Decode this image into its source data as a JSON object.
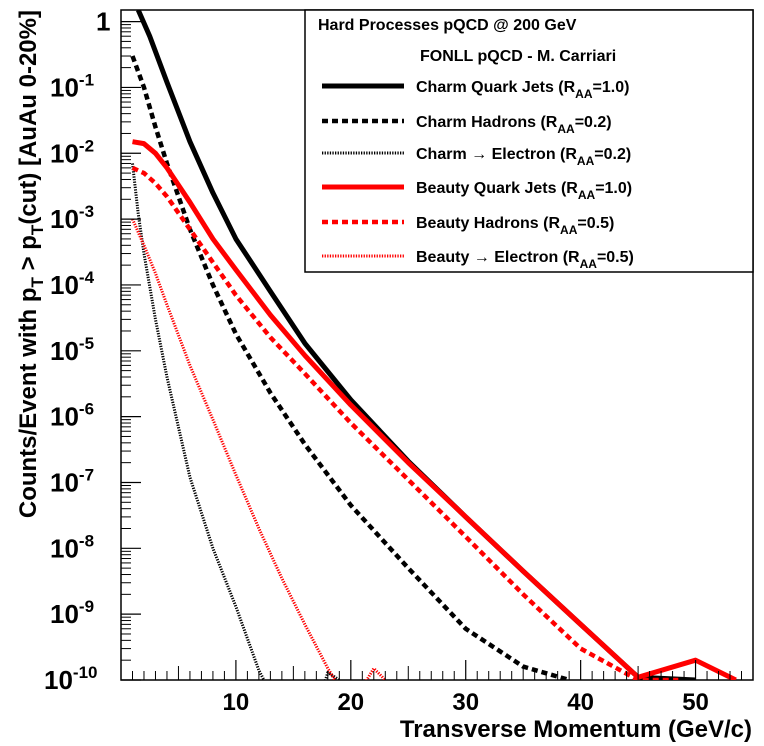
{
  "chart_data": {
    "type": "line",
    "xlabel": "Transverse Momentum (GeV/c)",
    "ylabel": "Counts/Event with p_T > p_T(cut) [AuAu 0-20%]",
    "ylabel_parts": {
      "pre": "Counts/Event with p",
      "sub1": "T",
      "mid": " > p",
      "sub2": "T",
      "post": "(cut) [AuAu 0-20%]"
    },
    "xlim": [
      0,
      55
    ],
    "ylim": [
      1e-10,
      1.5
    ],
    "yscale": "log",
    "x_ticks": [
      {
        "value": 10,
        "label": "10"
      },
      {
        "value": 20,
        "label": "20"
      },
      {
        "value": 30,
        "label": "30"
      },
      {
        "value": 40,
        "label": "40"
      },
      {
        "value": 50,
        "label": "50"
      }
    ],
    "y_ticks": [
      {
        "exp": 0,
        "base": "1",
        "sup": ""
      },
      {
        "exp": -1,
        "base": "10",
        "sup": "-1"
      },
      {
        "exp": -2,
        "base": "10",
        "sup": "-2"
      },
      {
        "exp": -3,
        "base": "10",
        "sup": "-3"
      },
      {
        "exp": -4,
        "base": "10",
        "sup": "-4"
      },
      {
        "exp": -5,
        "base": "10",
        "sup": "-5"
      },
      {
        "exp": -6,
        "base": "10",
        "sup": "-6"
      },
      {
        "exp": -7,
        "base": "10",
        "sup": "-7"
      },
      {
        "exp": -8,
        "base": "10",
        "sup": "-8"
      },
      {
        "exp": -9,
        "base": "10",
        "sup": "-9"
      },
      {
        "exp": -10,
        "base": "10",
        "sup": "-10"
      }
    ],
    "legend": {
      "position": "top-right",
      "header1": "Hard Processes pQCD @ 200 GeV",
      "header2": "FONLL pQCD - M. Carriari"
    },
    "series": [
      {
        "name": "Charm Quark Jets (R_AA=1.0)",
        "legend_main": "Charm Quark Jets (R",
        "legend_sub": "AA",
        "legend_tail": "=1.0)",
        "color": "#000000",
        "style": "solid",
        "x": [
          1.5,
          2.5,
          4,
          6,
          8,
          10,
          13,
          16,
          20,
          25,
          30,
          35,
          40,
          45,
          50
        ],
        "y": [
          1.5,
          0.6,
          0.12,
          0.015,
          0.0025,
          0.0005,
          8e-05,
          1.3e-05,
          1.8e-06,
          2.1e-07,
          3e-08,
          4.5e-09,
          7e-10,
          1.1e-10,
          1e-10
        ]
      },
      {
        "name": "Charm Hadrons (R_AA=0.2)",
        "legend_main": "Charm Hadrons (R",
        "legend_sub": "AA",
        "legend_tail": "=0.2)",
        "color": "#000000",
        "style": "dashed",
        "x": [
          1,
          2,
          3,
          4,
          6,
          8,
          10,
          13,
          16,
          20,
          25,
          30,
          35,
          39
        ],
        "y": [
          0.3,
          0.1,
          0.025,
          0.007,
          0.0007,
          0.0001,
          1.8e-05,
          2.3e-06,
          3.8e-07,
          4.5e-08,
          5e-09,
          6e-10,
          1.6e-10,
          1e-10
        ]
      },
      {
        "name": "Charm → Electron (R_AA=0.2)",
        "legend_main": "Charm → Electron (R",
        "legend_sub": "AA",
        "legend_tail": "=0.2)",
        "color": "#000000",
        "style": "dotted",
        "x": [
          1,
          1.5,
          2,
          3,
          4,
          6,
          8,
          10,
          12,
          14,
          16,
          18,
          19
        ],
        "y": [
          0.007,
          0.0012,
          0.0003,
          3e-05,
          4e-06,
          1.2e-07,
          1e-08,
          1.3e-09,
          1.4e-10,
          3e-11,
          1e-11,
          1.3e-10,
          1e-10
        ]
      },
      {
        "name": "Beauty Quark Jets (R_AA=1.0)",
        "legend_main": "Beauty Quark Jets (R",
        "legend_sub": "AA",
        "legend_tail": "=1.0)",
        "color": "#ff0000",
        "style": "solid",
        "x": [
          1,
          2,
          3,
          4,
          6,
          8,
          10,
          13,
          16,
          20,
          25,
          30,
          35,
          40,
          45,
          50,
          53.5
        ],
        "y": [
          0.015,
          0.014,
          0.01,
          0.006,
          0.0018,
          0.0005,
          0.00017,
          3.5e-05,
          8.5e-06,
          1.5e-06,
          2e-07,
          3e-08,
          4.5e-09,
          7e-10,
          1.1e-10,
          2e-10,
          1e-10
        ]
      },
      {
        "name": "Beauty Hadrons (R_AA=0.5)",
        "legend_main": "Beauty Hadrons (R",
        "legend_sub": "AA",
        "legend_tail": "=0.5)",
        "color": "#ff0000",
        "style": "dashed",
        "x": [
          1,
          2,
          3,
          4,
          6,
          8,
          10,
          13,
          16,
          20,
          25,
          30,
          35,
          40,
          45,
          48.5
        ],
        "y": [
          0.006,
          0.005,
          0.0035,
          0.0022,
          0.0007,
          0.00022,
          7e-05,
          1.6e-05,
          4.5e-06,
          8e-07,
          1.1e-07,
          1.5e-08,
          2e-09,
          3e-10,
          1e-10,
          1e-10
        ]
      },
      {
        "name": "Beauty → Electron (R_AA=0.5)",
        "legend_main": "Beauty → Electron (R",
        "legend_sub": "AA",
        "legend_tail": "=0.5)",
        "color": "#ff0000",
        "style": "dotted",
        "x": [
          1,
          2,
          3,
          4,
          6,
          8,
          10,
          12,
          14,
          16,
          18,
          20,
          22,
          23
        ],
        "y": [
          0.001,
          0.0004,
          0.00015,
          5e-05,
          6e-06,
          9e-07,
          1.3e-07,
          2e-08,
          3.5e-09,
          7e-10,
          1.5e-10,
          4e-11,
          1.5e-10,
          1e-10
        ]
      }
    ]
  }
}
